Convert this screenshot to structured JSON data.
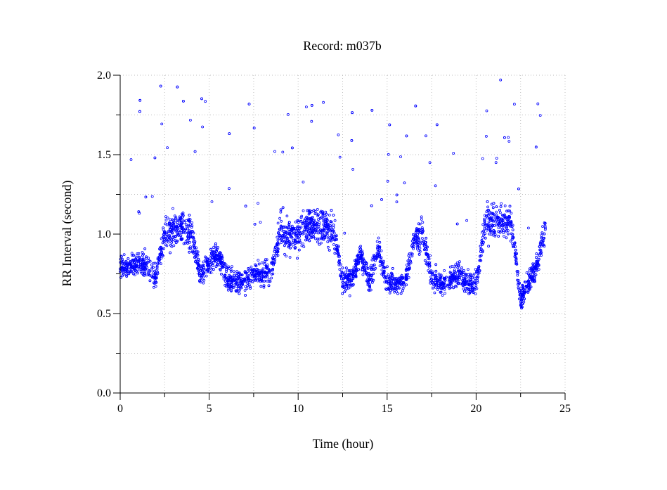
{
  "chart_data": {
    "type": "scatter",
    "title": "Record:  m037b",
    "xlabel": "Time (hour)",
    "ylabel": "RR Interval (second)",
    "xlim": [
      0,
      25
    ],
    "ylim": [
      0,
      2
    ],
    "x_ticks": [
      0,
      5,
      10,
      15,
      20,
      25
    ],
    "x_tick_labels": [
      "0",
      "5",
      "10",
      "15",
      "20",
      "25"
    ],
    "y_ticks": [
      0,
      0.5,
      1,
      1.5,
      2
    ],
    "y_tick_labels": [
      "0.0",
      "0.5",
      "1.0",
      "1.5",
      "2.0"
    ],
    "grid": true,
    "marker": "open-circle",
    "color": "#0000ff",
    "series_trend": [
      {
        "hour": 0.0,
        "rr": 0.8
      },
      {
        "hour": 0.5,
        "rr": 0.78
      },
      {
        "hour": 1.0,
        "rr": 0.82
      },
      {
        "hour": 1.5,
        "rr": 0.8
      },
      {
        "hour": 2.0,
        "rr": 0.72
      },
      {
        "hour": 2.5,
        "rr": 1.0
      },
      {
        "hour": 3.0,
        "rr": 1.02
      },
      {
        "hour": 3.5,
        "rr": 1.05
      },
      {
        "hour": 4.0,
        "rr": 1.0
      },
      {
        "hour": 4.5,
        "rr": 0.75
      },
      {
        "hour": 5.0,
        "rr": 0.82
      },
      {
        "hour": 5.5,
        "rr": 0.88
      },
      {
        "hour": 6.0,
        "rr": 0.72
      },
      {
        "hour": 6.5,
        "rr": 0.7
      },
      {
        "hour": 7.0,
        "rr": 0.7
      },
      {
        "hour": 7.5,
        "rr": 0.75
      },
      {
        "hour": 8.0,
        "rr": 0.74
      },
      {
        "hour": 8.5,
        "rr": 0.78
      },
      {
        "hour": 9.0,
        "rr": 1.02
      },
      {
        "hour": 9.5,
        "rr": 1.0
      },
      {
        "hour": 10.0,
        "rr": 0.98
      },
      {
        "hour": 10.5,
        "rr": 1.06
      },
      {
        "hour": 11.0,
        "rr": 1.05
      },
      {
        "hour": 11.5,
        "rr": 1.04
      },
      {
        "hour": 12.0,
        "rr": 1.02
      },
      {
        "hour": 12.5,
        "rr": 0.7
      },
      {
        "hour": 13.0,
        "rr": 0.72
      },
      {
        "hour": 13.5,
        "rr": 0.88
      },
      {
        "hour": 14.0,
        "rr": 0.7
      },
      {
        "hour": 14.5,
        "rr": 0.92
      },
      {
        "hour": 15.0,
        "rr": 0.7
      },
      {
        "hour": 15.5,
        "rr": 0.68
      },
      {
        "hour": 16.0,
        "rr": 0.7
      },
      {
        "hour": 16.5,
        "rr": 0.95
      },
      {
        "hour": 17.0,
        "rr": 1.0
      },
      {
        "hour": 17.5,
        "rr": 0.72
      },
      {
        "hour": 18.0,
        "rr": 0.68
      },
      {
        "hour": 18.5,
        "rr": 0.72
      },
      {
        "hour": 19.0,
        "rr": 0.75
      },
      {
        "hour": 19.5,
        "rr": 0.68
      },
      {
        "hour": 20.0,
        "rr": 0.7
      },
      {
        "hour": 20.5,
        "rr": 1.05
      },
      {
        "hour": 21.0,
        "rr": 1.1
      },
      {
        "hour": 21.5,
        "rr": 1.08
      },
      {
        "hour": 22.0,
        "rr": 1.08
      },
      {
        "hour": 22.5,
        "rr": 0.6
      },
      {
        "hour": 23.0,
        "rr": 0.7
      },
      {
        "hour": 23.5,
        "rr": 0.82
      },
      {
        "hour": 23.9,
        "rr": 1.05
      }
    ]
  }
}
